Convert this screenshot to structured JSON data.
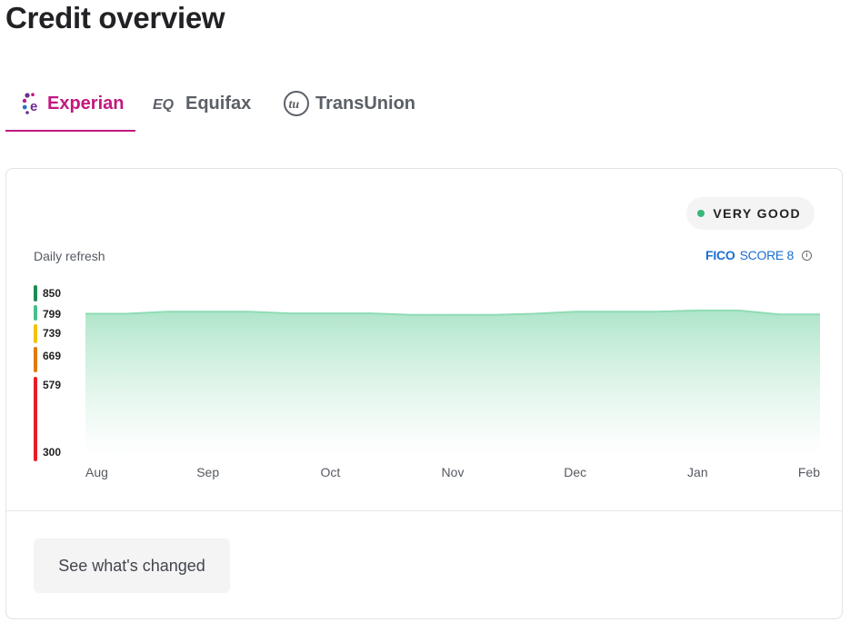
{
  "page": {
    "title": "Credit overview"
  },
  "tabs": [
    {
      "label": "Experian",
      "icon": "experian-logo-icon",
      "active": true,
      "color": "#c2187f"
    },
    {
      "label": "Equifax",
      "icon": "equifax-logo-icon",
      "active": false
    },
    {
      "label": "TransUnion",
      "icon": "transunion-logo-icon",
      "active": false
    }
  ],
  "card": {
    "rating": {
      "label": "VERY GOOD",
      "dot_color": "#39b878"
    },
    "refresh_label": "Daily refresh",
    "fico": {
      "brand": "FICO",
      "score_label": "SCORE 8",
      "icon": "info-icon"
    },
    "button_label": "See what's changed"
  },
  "chart_data": {
    "type": "area",
    "x": [
      "Aug",
      "Sep",
      "Oct",
      "Nov",
      "Dec",
      "Jan",
      "Feb"
    ],
    "score_bands": [
      {
        "label": "850",
        "color": "#1e8a55"
      },
      {
        "label": "799",
        "color": "#45c08a"
      },
      {
        "label": "739",
        "color": "#f2c30f"
      },
      {
        "label": "669",
        "color": "#e07a10"
      },
      {
        "label": "579",
        "color": "#e81e26"
      },
      {
        "label": "300",
        "color": "#e81e26"
      }
    ],
    "series": [
      {
        "color": "#8fdcb5",
        "points": [
          {
            "x": "Aug",
            "y": 800
          },
          {
            "x": "Aug",
            "y": 800
          },
          {
            "x": "Aug",
            "y": 805
          },
          {
            "x": "Sep",
            "y": 805
          },
          {
            "x": "Sep",
            "y": 805
          },
          {
            "x": "Sep",
            "y": 801
          },
          {
            "x": "Oct",
            "y": 801
          },
          {
            "x": "Oct",
            "y": 801
          },
          {
            "x": "Oct",
            "y": 797
          },
          {
            "x": "Nov",
            "y": 797
          },
          {
            "x": "Nov",
            "y": 797
          },
          {
            "x": "Nov",
            "y": 800
          },
          {
            "x": "Dec",
            "y": 805
          },
          {
            "x": "Dec",
            "y": 805
          },
          {
            "x": "Dec",
            "y": 805
          },
          {
            "x": "Jan",
            "y": 808
          },
          {
            "x": "Jan",
            "y": 808
          },
          {
            "x": "Jan",
            "y": 798
          },
          {
            "x": "Feb",
            "y": 798
          }
        ]
      }
    ],
    "grid": false,
    "legend": "none"
  }
}
